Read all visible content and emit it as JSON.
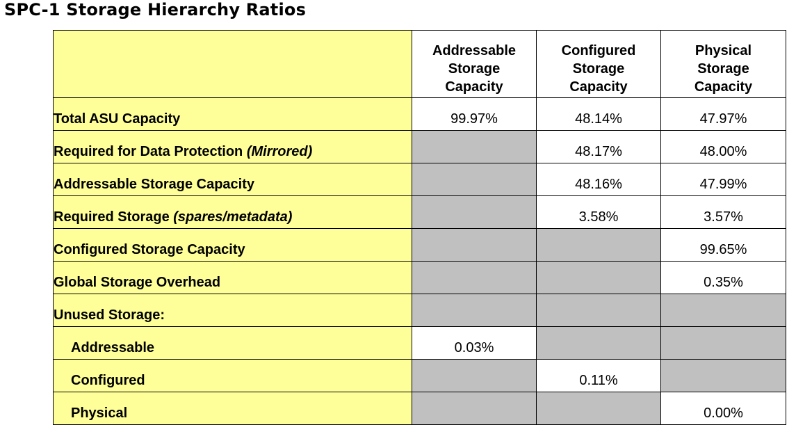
{
  "title": "SPC-1 Storage Hierarchy Ratios",
  "colors": {
    "label_bg": "#ffff99",
    "shaded_cell": "#c0c0c0",
    "value_bg": "#ffffff"
  },
  "columns": [
    {
      "line1": "Addressable",
      "line2": "Storage",
      "line3": "Capacity"
    },
    {
      "line1": "Configured",
      "line2": "Storage",
      "line3": "Capacity"
    },
    {
      "line1": "Physical",
      "line2": "Storage",
      "line3": "Capacity"
    }
  ],
  "rows": [
    {
      "label": "Total ASU Capacity",
      "note": "",
      "values": [
        "99.97%",
        "48.14%",
        "47.97%"
      ]
    },
    {
      "label": "Required for Data Protection ",
      "note": "(Mirrored)",
      "values": [
        "",
        "48.17%",
        "48.00%"
      ]
    },
    {
      "label": "Addressable Storage Capacity",
      "note": "",
      "values": [
        "",
        "48.16%",
        "47.99%"
      ]
    },
    {
      "label": "Required Storage ",
      "note": "(spares/metadata)",
      "values": [
        "",
        "3.58%",
        "3.57%"
      ]
    },
    {
      "label": "Configured Storage Capacity",
      "note": "",
      "values": [
        "",
        "",
        "99.65%"
      ]
    },
    {
      "label": "Global Storage Overhead",
      "note": "",
      "values": [
        "",
        "",
        "0.35%"
      ]
    },
    {
      "label": "Unused Storage:",
      "note": "",
      "values": [
        "",
        "",
        ""
      ]
    },
    {
      "label": "Addressable",
      "note": "",
      "values": [
        "0.03%",
        "",
        ""
      ]
    },
    {
      "label": "Configured",
      "note": "",
      "values": [
        "",
        "0.11%",
        ""
      ]
    },
    {
      "label": "Physical",
      "note": "",
      "values": [
        "",
        "",
        "0.00%"
      ]
    }
  ]
}
